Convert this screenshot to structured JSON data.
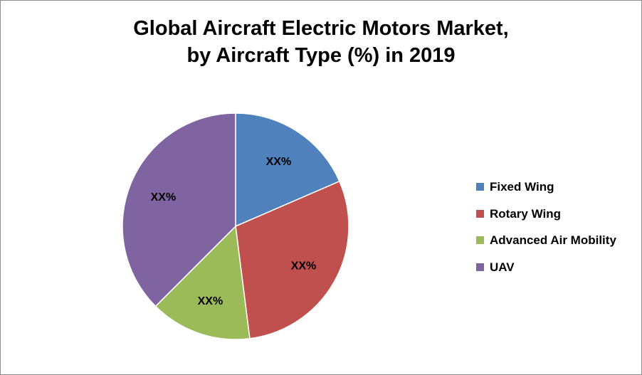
{
  "chart_data": {
    "type": "pie",
    "title_lines": [
      "Global Aircraft Electric Motors Market,",
      "by Aircraft Type (%) in 2019"
    ],
    "categories": [
      "Fixed Wing",
      "Rotary Wing",
      "Advanced Air Mobility",
      "UAV"
    ],
    "values": [
      18.5,
      29.5,
      14.5,
      37.5
    ],
    "labels": [
      "XX%",
      "XX%",
      "XX%",
      "XX%"
    ],
    "colors": [
      "#4f81bd",
      "#c0504d",
      "#9bbb59",
      "#8064a2"
    ],
    "start_angle_deg": 0,
    "direction": "clockwise",
    "legend_position": "right"
  }
}
